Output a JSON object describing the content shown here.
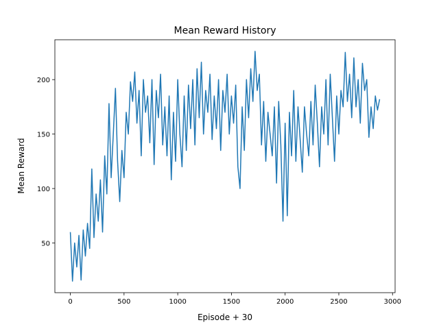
{
  "chart_data": {
    "type": "line",
    "title": "Mean Reward History",
    "xlabel": "Episode + 30",
    "ylabel": "Mean Reward",
    "color": "#1f77b4",
    "x": [
      0,
      20,
      40,
      60,
      80,
      100,
      120,
      140,
      160,
      180,
      200,
      220,
      240,
      260,
      280,
      300,
      320,
      340,
      360,
      380,
      400,
      420,
      440,
      460,
      480,
      500,
      520,
      540,
      560,
      580,
      600,
      620,
      640,
      660,
      680,
      700,
      720,
      740,
      760,
      780,
      800,
      820,
      840,
      860,
      880,
      900,
      920,
      940,
      960,
      980,
      1000,
      1020,
      1040,
      1060,
      1080,
      1100,
      1120,
      1140,
      1160,
      1180,
      1200,
      1220,
      1240,
      1260,
      1280,
      1300,
      1320,
      1340,
      1360,
      1380,
      1400,
      1420,
      1440,
      1460,
      1480,
      1500,
      1520,
      1540,
      1560,
      1580,
      1600,
      1620,
      1640,
      1660,
      1680,
      1700,
      1720,
      1740,
      1760,
      1780,
      1800,
      1820,
      1840,
      1860,
      1880,
      1900,
      1920,
      1940,
      1960,
      1980,
      2000,
      2020,
      2040,
      2060,
      2080,
      2100,
      2120,
      2140,
      2160,
      2180,
      2200,
      2220,
      2240,
      2260,
      2280,
      2300,
      2320,
      2340,
      2360,
      2380,
      2400,
      2420,
      2440,
      2460,
      2480,
      2500,
      2520,
      2540,
      2560,
      2580,
      2600,
      2620,
      2640,
      2660,
      2680,
      2700,
      2720,
      2740,
      2760,
      2780,
      2800,
      2820,
      2840,
      2860,
      2880
    ],
    "values": [
      60,
      15,
      50,
      28,
      57,
      16,
      62,
      38,
      68,
      45,
      118,
      55,
      95,
      70,
      108,
      60,
      130,
      95,
      178,
      110,
      150,
      192,
      125,
      88,
      135,
      110,
      170,
      150,
      198,
      180,
      207,
      160,
      190,
      130,
      200,
      170,
      185,
      142,
      200,
      122,
      190,
      165,
      205,
      140,
      175,
      130,
      185,
      108,
      170,
      125,
      200,
      150,
      120,
      185,
      135,
      195,
      155,
      200,
      140,
      210,
      165,
      216,
      150,
      190,
      170,
      205,
      145,
      185,
      155,
      200,
      135,
      190,
      170,
      205,
      150,
      185,
      160,
      195,
      120,
      100,
      175,
      135,
      200,
      165,
      210,
      180,
      226,
      190,
      205,
      140,
      180,
      125,
      170,
      150,
      130,
      175,
      105,
      180,
      140,
      70,
      160,
      75,
      170,
      130,
      190,
      125,
      175,
      145,
      115,
      175,
      150,
      130,
      180,
      140,
      195,
      160,
      120,
      175,
      150,
      200,
      140,
      205,
      165,
      125,
      185,
      150,
      190,
      175,
      225,
      180,
      205,
      165,
      220,
      175,
      200,
      160,
      215,
      190,
      200,
      147,
      175,
      155,
      185,
      172,
      182
    ],
    "xlim": [
      -144,
      3024
    ],
    "ylim": [
      4.4,
      236.6
    ],
    "xticks": [
      0,
      500,
      1000,
      1500,
      2000,
      2500,
      3000
    ],
    "yticks": [
      50,
      100,
      150,
      200
    ]
  }
}
